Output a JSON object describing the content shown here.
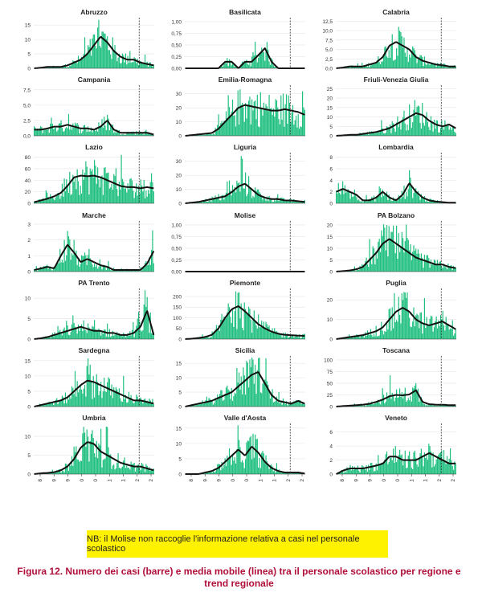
{
  "figure": {
    "note": "NB: il Molise non raccoglie l'informazione relativa a casi nel personale scolastico",
    "caption": "Figura 12. Numero dei casi (barre) e media mobile (linea) tra il personale scolastico per regione e trend regionale"
  },
  "colors": {
    "bar": "#1fbf7f",
    "line": "#111111",
    "grid": "#e6e6e6",
    "axis": "#333333",
    "dashed": "#333333"
  },
  "chart_data": [
    {
      "type": "bar",
      "title": "Abruzzo",
      "y_ticks": [
        "0",
        "5",
        "10",
        "15"
      ],
      "ylim": [
        0,
        17
      ],
      "cut_frac": 0.88,
      "line": [
        0,
        0.2,
        0.5,
        0.5,
        0.5,
        1.0,
        2.0,
        3.0,
        5.0,
        8.0,
        11.0,
        9.0,
        6.0,
        4.0,
        3.0,
        3.0,
        2.0,
        1.5,
        1.0
      ]
    },
    {
      "type": "bar",
      "title": "Basilicata",
      "y_ticks": [
        "0,00",
        "0,25",
        "0,50",
        "0,75",
        "1,00"
      ],
      "ylim": [
        0,
        1.05
      ],
      "cut_frac": 0.88,
      "line": [
        0,
        0,
        0,
        0,
        0,
        0,
        0.14,
        0.14,
        0,
        0.14,
        0.14,
        0.28,
        0.43,
        0.14,
        0,
        0,
        0,
        0,
        0
      ]
    },
    {
      "type": "bar",
      "title": "Calabria",
      "y_ticks": [
        "0,0",
        "2,5",
        "5,0",
        "7,5",
        "10,0",
        "12,5"
      ],
      "ylim": [
        0,
        13
      ],
      "cut_frac": 0.88,
      "line": [
        0,
        0.2,
        0.5,
        0.5,
        0.5,
        1.0,
        1.5,
        3.0,
        6.0,
        7.0,
        6.0,
        5.0,
        3.0,
        2.0,
        1.5,
        1.0,
        0.8,
        0.5,
        0.5
      ]
    },
    {
      "type": "bar",
      "title": "Campania",
      "y_ticks": [
        "0,0",
        "2,5",
        "5,0",
        "7,5"
      ],
      "ylim": [
        0,
        8
      ],
      "cut_frac": 0.88,
      "line": [
        1.0,
        1.0,
        1.2,
        1.5,
        1.5,
        1.8,
        1.5,
        1.2,
        1.2,
        1.0,
        1.5,
        2.5,
        1.0,
        0.5,
        0.5,
        0.5,
        0.5,
        0.5,
        0.2
      ]
    },
    {
      "type": "bar",
      "title": "Emilia-Romagna",
      "y_ticks": [
        "0",
        "10",
        "20",
        "30"
      ],
      "ylim": [
        0,
        35
      ],
      "cut_frac": 0.88,
      "line": [
        0,
        0.5,
        1.0,
        1.5,
        2.0,
        5.0,
        10.0,
        15.0,
        20.0,
        22.0,
        21.0,
        20.0,
        19.0,
        18.0,
        18.0,
        19.0,
        18.0,
        17.0,
        15.0
      ]
    },
    {
      "type": "bar",
      "title": "Friuli-Venezia Giulia",
      "y_ticks": [
        "0",
        "5",
        "10",
        "15",
        "20",
        "25"
      ],
      "ylim": [
        0,
        26
      ],
      "cut_frac": 0.88,
      "line": [
        0,
        0.2,
        0.5,
        0.5,
        1.0,
        1.5,
        2.0,
        3.0,
        4.0,
        6.0,
        8.0,
        10.0,
        12.0,
        11.0,
        8.0,
        6.0,
        5.0,
        6.0,
        4.0
      ]
    },
    {
      "type": "bar",
      "title": "Lazio",
      "y_ticks": [
        "0",
        "20",
        "40",
        "60",
        "80"
      ],
      "ylim": [
        0,
        85
      ],
      "cut_frac": 0.88,
      "line": [
        2,
        5,
        8,
        12,
        18,
        30,
        45,
        48,
        47,
        48,
        45,
        40,
        35,
        30,
        28,
        28,
        26,
        28,
        26
      ]
    },
    {
      "type": "bar",
      "title": "Liguria",
      "y_ticks": [
        "0",
        "10",
        "20",
        "30"
      ],
      "ylim": [
        0,
        35
      ],
      "cut_frac": 0.88,
      "line": [
        0,
        0.5,
        1.0,
        2.0,
        3.0,
        4.0,
        5.0,
        8.0,
        12.0,
        14.0,
        10.0,
        6.0,
        4.0,
        3.0,
        3.0,
        2.0,
        2.0,
        1.5,
        1.0
      ]
    },
    {
      "type": "bar",
      "title": "Lombardia",
      "y_ticks": [
        "0",
        "2",
        "4",
        "6",
        "8"
      ],
      "ylim": [
        0,
        8.5
      ],
      "cut_frac": 0.88,
      "line": [
        2.0,
        2.5,
        2.0,
        1.5,
        0.5,
        0.5,
        1.0,
        2.0,
        1.0,
        0.5,
        1.5,
        3.5,
        2.0,
        1.0,
        0.5,
        0.3,
        0.2,
        0.1,
        0.1
      ]
    },
    {
      "type": "bar",
      "title": "Marche",
      "y_ticks": [
        "0",
        "1",
        "2",
        "3"
      ],
      "ylim": [
        0,
        3.1
      ],
      "cut_frac": 0.88,
      "line": [
        0.1,
        0.2,
        0.3,
        0.2,
        1.0,
        1.7,
        1.2,
        0.6,
        0.8,
        0.6,
        0.4,
        0.3,
        0.1,
        0.1,
        0.1,
        0.1,
        0.1,
        0.5,
        1.3
      ]
    },
    {
      "type": "bar",
      "title": "Molise",
      "y_ticks": [
        "0,00",
        "0,25",
        "0,50",
        "0,75",
        "1,00"
      ],
      "ylim": [
        0,
        1.05
      ],
      "cut_frac": 0.88,
      "line": [
        0,
        0,
        0,
        0,
        0,
        0,
        0,
        0,
        0,
        0,
        0,
        0,
        0,
        0,
        0,
        0,
        0,
        0,
        0
      ]
    },
    {
      "type": "bar",
      "title": "PA Bolzano",
      "y_ticks": [
        "0",
        "5",
        "10",
        "15",
        "20"
      ],
      "ylim": [
        0,
        21
      ],
      "cut_frac": 0.88,
      "line": [
        0,
        0.2,
        0.5,
        1.0,
        2.0,
        5.0,
        8.0,
        12.0,
        14.0,
        12.0,
        10.0,
        8.0,
        6.0,
        5.0,
        4.0,
        3.0,
        3.0,
        2.0,
        1.5
      ]
    },
    {
      "type": "bar",
      "title": "PA Trento",
      "y_ticks": [
        "0",
        "5",
        "10"
      ],
      "ylim": [
        0,
        12
      ],
      "cut_frac": 0.88,
      "line": [
        0,
        0.2,
        0.5,
        1.0,
        1.5,
        2.0,
        2.5,
        3.0,
        2.5,
        2.0,
        2.0,
        1.5,
        1.5,
        1.0,
        1.0,
        1.5,
        3.0,
        7.0,
        1.0
      ]
    },
    {
      "type": "bar",
      "title": "Piemonte",
      "y_ticks": [
        "0",
        "50",
        "100",
        "150",
        "200"
      ],
      "ylim": [
        0,
        230
      ],
      "cut_frac": 0.88,
      "line": [
        0,
        2,
        5,
        10,
        20,
        50,
        100,
        140,
        155,
        130,
        100,
        70,
        50,
        35,
        25,
        20,
        18,
        16,
        15
      ]
    },
    {
      "type": "bar",
      "title": "Puglia",
      "y_ticks": [
        "0",
        "10",
        "20"
      ],
      "ylim": [
        0,
        25
      ],
      "cut_frac": 0.88,
      "line": [
        0,
        0.5,
        1.0,
        1.5,
        2.0,
        3.0,
        4.0,
        6.0,
        10.0,
        14.0,
        16.0,
        14.0,
        10.0,
        8.0,
        7.0,
        8.0,
        9.0,
        7.0,
        5.0
      ]
    },
    {
      "type": "bar",
      "title": "Sardegna",
      "y_ticks": [
        "0",
        "5",
        "10",
        "15"
      ],
      "ylim": [
        0,
        16
      ],
      "cut_frac": 0.88,
      "line": [
        0,
        0.5,
        1.0,
        1.5,
        2.0,
        3.0,
        5.0,
        7.0,
        8.5,
        8.0,
        7.0,
        6.0,
        5.0,
        4.0,
        3.0,
        2.0,
        2.0,
        1.5,
        1.0
      ]
    },
    {
      "type": "bar",
      "title": "Sicilia",
      "y_ticks": [
        "0",
        "5",
        "10",
        "15"
      ],
      "ylim": [
        0,
        17
      ],
      "cut_frac": 0.88,
      "line": [
        0,
        0.5,
        1.0,
        1.5,
        2.0,
        3.0,
        4.0,
        5.0,
        7.0,
        9.0,
        11.0,
        12.0,
        8.0,
        4.0,
        2.0,
        1.5,
        1.0,
        2.0,
        1.0
      ]
    },
    {
      "type": "bar",
      "title": "Toscana",
      "y_ticks": [
        "0",
        "25",
        "50",
        "75",
        "100"
      ],
      "ylim": [
        0,
        105
      ],
      "cut_frac": 0.88,
      "line": [
        0,
        1,
        2,
        3,
        4,
        6,
        10,
        15,
        22,
        25,
        24,
        26,
        35,
        10,
        5,
        4,
        4,
        3,
        3
      ]
    },
    {
      "type": "bar",
      "title": "Umbria",
      "y_ticks": [
        "0",
        "5",
        "10"
      ],
      "ylim": [
        0,
        13
      ],
      "cut_frac": 0.88,
      "line": [
        0,
        0.2,
        0.3,
        0.5,
        1.0,
        2.0,
        4.0,
        7.0,
        8.5,
        8.0,
        6.0,
        5.0,
        4.0,
        3.0,
        2.5,
        2.0,
        2.0,
        1.5,
        1.0
      ]
    },
    {
      "type": "bar",
      "title": "Valle d'Aosta",
      "y_ticks": [
        "0",
        "5",
        "10",
        "15"
      ],
      "ylim": [
        0,
        16
      ],
      "cut_frac": 0.88,
      "line": [
        0,
        0,
        0,
        0.5,
        1.0,
        2.0,
        4.0,
        6.0,
        8.0,
        6.0,
        9.0,
        7.0,
        4.0,
        2.0,
        1.0,
        0.5,
        0.5,
        0.5,
        0.2
      ]
    },
    {
      "type": "bar",
      "title": "Veneto",
      "y_ticks": [
        "0",
        "2",
        "4",
        "6"
      ],
      "ylim": [
        0,
        7
      ],
      "cut_frac": 0.88,
      "line": [
        0,
        0.5,
        0.8,
        0.8,
        0.8,
        1.0,
        1.2,
        1.5,
        2.5,
        2.5,
        2.0,
        2.0,
        2.0,
        2.5,
        3.0,
        2.5,
        2.0,
        1.5,
        1.5
      ]
    }
  ],
  "x_axis": {
    "labels": [
      "31/08",
      "14/09",
      "28/09",
      "12/10",
      "26/10",
      "09/11",
      "23/11",
      "07/12",
      "21/12"
    ]
  }
}
